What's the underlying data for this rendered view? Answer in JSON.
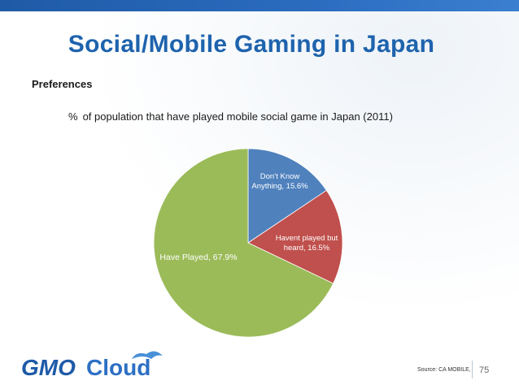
{
  "slide": {
    "title": "Social/Mobile Gaming in Japan",
    "subtitle": "Preferences",
    "caption_pct": "%",
    "caption_text": "of population that have played mobile social game in Japan (2011)",
    "source": "Source: CA MOBILE,",
    "page_number": "75",
    "logo_text_left": "GMO",
    "logo_text_right": "Cloud",
    "colors": {
      "title": "#1e63ad",
      "topbar": "#2b6cbf"
    }
  },
  "chart_data": {
    "type": "pie",
    "title": "% of population that have played mobile social game in Japan (2011)",
    "slices": [
      {
        "label_line1": "Don’t Know",
        "label_line2": "Anything, 15.6%",
        "name": "Don’t Know Anything",
        "value": 15.6,
        "color": "#4f81bd"
      },
      {
        "label_line1": "Havent played but",
        "label_line2": "heard, 16.5%",
        "name": "Havent played but heard",
        "value": 16.5,
        "color": "#c0504d"
      },
      {
        "label_line1": "Have Played, 67.9%",
        "label_line2": "",
        "name": "Have Played",
        "value": 67.9,
        "color": "#9bbb59"
      }
    ]
  }
}
